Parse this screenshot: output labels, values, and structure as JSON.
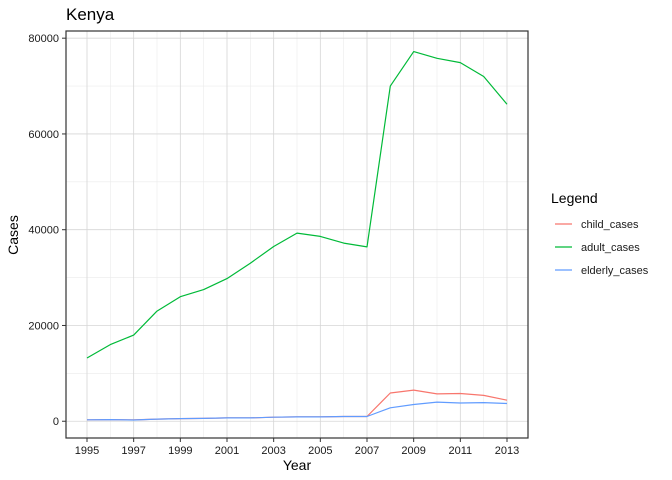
{
  "chart_data": {
    "type": "line",
    "title": "Kenya",
    "xlabel": "Year",
    "ylabel": "Cases",
    "x": [
      1995,
      1996,
      1997,
      1998,
      1999,
      2000,
      2001,
      2002,
      2003,
      2004,
      2005,
      2006,
      2007,
      2008,
      2009,
      2010,
      2011,
      2012,
      2013
    ],
    "series": [
      {
        "name": "child_cases",
        "color": "#F8766D",
        "values": [
          300,
          350,
          280,
          450,
          550,
          600,
          700,
          700,
          850,
          900,
          900,
          1000,
          1000,
          5900,
          6500,
          5700,
          5800,
          5400,
          4400
        ]
      },
      {
        "name": "adult_cases",
        "color": "#00BA38",
        "values": [
          13200,
          16000,
          18000,
          23000,
          26000,
          27500,
          29800,
          33000,
          36500,
          39300,
          38600,
          37200,
          36400,
          70000,
          77200,
          75800,
          74900,
          72000,
          66200
        ]
      },
      {
        "name": "elderly_cases",
        "color": "#619CFF",
        "values": [
          300,
          350,
          250,
          450,
          550,
          600,
          700,
          700,
          850,
          900,
          900,
          1000,
          1000,
          2800,
          3500,
          4000,
          3800,
          3900,
          3700
        ]
      }
    ],
    "xticks": [
      "1995",
      "1997",
      "1999",
      "2001",
      "2003",
      "2005",
      "2007",
      "2009",
      "2011",
      "2013"
    ],
    "yticks": [
      "0",
      "20000",
      "40000",
      "60000",
      "80000"
    ],
    "xlim": [
      1994.1,
      2013.9
    ],
    "ylim": [
      -3500,
      81500
    ],
    "grid": true,
    "legend": {
      "title": "Legend",
      "position": "right"
    }
  }
}
